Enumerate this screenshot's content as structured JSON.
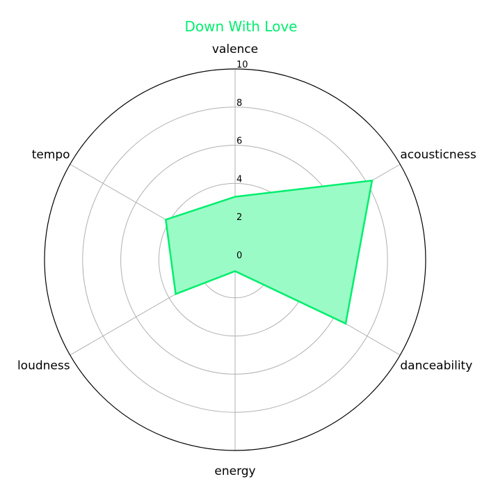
{
  "chart_data": {
    "type": "radar",
    "title": "Down With Love",
    "axes": [
      "valence",
      "acousticness",
      "danceability",
      "energy",
      "loudness",
      "tempo"
    ],
    "rlim": [
      0,
      10
    ],
    "r_ticks": [
      "0",
      "2",
      "4",
      "6",
      "8",
      "10"
    ],
    "values": [
      3.3,
      8.3,
      6.7,
      0.6,
      3.6,
      4.2
    ],
    "grid": true,
    "colors": {
      "series": "#00ee6e",
      "fill": "#9bfbc6",
      "grid": "#b0b0b0",
      "spine": "#000000"
    }
  }
}
